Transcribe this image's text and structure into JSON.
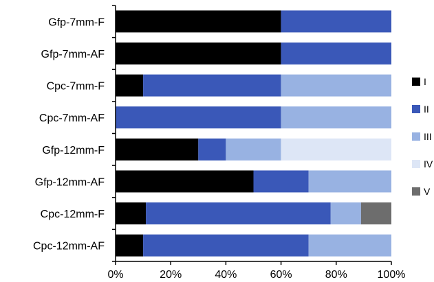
{
  "chart_data": {
    "type": "bar",
    "orientation": "horizontal",
    "stacked": "percent",
    "categories": [
      "Gfp-7mm-F",
      "Gfp-7mm-AF",
      "Cpc-7mm-F",
      "Cpc-7mm-AF",
      "Gfp-12mm-F",
      "Gfp-12mm-AF",
      "Cpc-12mm-F",
      "Cpc-12mm-AF"
    ],
    "series": [
      {
        "name": "I",
        "color": "#000000",
        "values": [
          60,
          60,
          10,
          0,
          30,
          50,
          11,
          10
        ]
      },
      {
        "name": "II",
        "color": "#3a58b8",
        "values": [
          40,
          40,
          50,
          60,
          10,
          20,
          67,
          60
        ]
      },
      {
        "name": "III",
        "color": "#98b2e2",
        "values": [
          0,
          0,
          40,
          40,
          20,
          30,
          11,
          30
        ]
      },
      {
        "name": "IV",
        "color": "#dde6f6",
        "values": [
          0,
          0,
          0,
          0,
          40,
          0,
          0,
          0
        ]
      },
      {
        "name": "V",
        "color": "#6d6d6d",
        "values": [
          0,
          0,
          0,
          0,
          0,
          0,
          11,
          0
        ]
      }
    ],
    "xlim": [
      0,
      100
    ],
    "xticks": [
      "0%",
      "20%",
      "40%",
      "60%",
      "80%",
      "100%"
    ],
    "xlabel": "",
    "ylabel": "",
    "grid": false,
    "legend_position": "right"
  }
}
